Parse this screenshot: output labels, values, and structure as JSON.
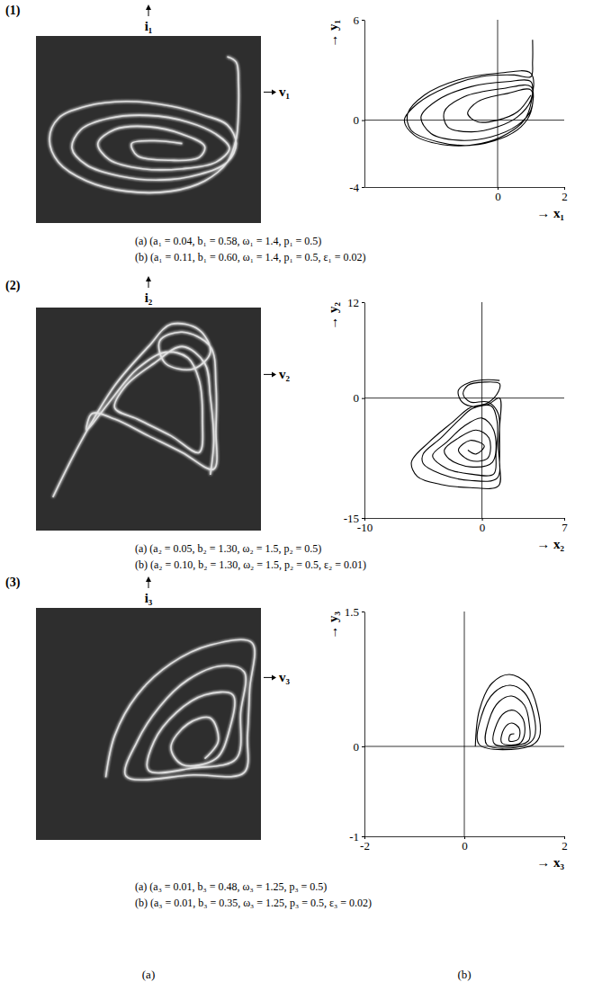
{
  "figure": {
    "rows": [
      {
        "label": "(1)",
        "captions": [
          "(a) (a₁ = 0.04, b₁ = 0.58, ω₁ = 1.4, p₁ = 0.5)",
          "(b) (a₁ = 0.11, b₁ = 0.60, ω₁ = 1.4, p₁ = 0.5, ε₁ = 0.02)"
        ]
      },
      {
        "label": "(2)",
        "captions": [
          "(a) (a₂ = 0.05, b₂ = 1.30, ω₂ = 1.5, p₂ = 0.5)",
          "(b) (a₂ = 0.10, b₂ = 1.30, ω₂ = 1.5, p₂ = 0.5, ε₂ = 0.01)"
        ]
      },
      {
        "label": "(3)",
        "captions": [
          "(a) (a₃ = 0.01, b₃ = 0.48, ω₃ = 1.25, p₃ = 0.5)",
          "(b) (a₃ = 0.01, b₃ = 0.35, ω₃ = 1.25, p₃ = 0.5, ε₃ = 0.02)"
        ]
      }
    ],
    "columns": [
      "(a)",
      "(b)"
    ]
  },
  "chart_data": [
    {
      "type": "line",
      "xlabel": "v₁",
      "ylabel": "i₁",
      "xlim": [
        -1,
        1
      ],
      "ylim": [
        -1,
        1
      ],
      "tick_labels": false,
      "color": "#e6e6e6",
      "x": [
        0.7,
        0.78,
        0.8,
        0.8,
        0.78,
        0.7,
        0.5,
        0.2,
        -0.2,
        -0.55,
        -0.8,
        -0.88,
        -0.8,
        -0.55,
        -0.2,
        0.2,
        0.5,
        0.7,
        0.78,
        0.7,
        0.45,
        0.1,
        -0.25,
        -0.55,
        -0.68,
        -0.6,
        -0.35,
        0,
        0.35,
        0.6,
        0.72,
        0.6,
        0.3,
        -0.05,
        -0.35,
        -0.45,
        -0.3,
        0,
        0.3,
        0.5,
        0.45,
        0.2,
        -0.1,
        -0.15,
        0.05,
        0.3
      ],
      "values": [
        0.78,
        0.72,
        0.5,
        0.2,
        -0.1,
        -0.35,
        -0.55,
        -0.66,
        -0.66,
        -0.55,
        -0.35,
        -0.1,
        0.12,
        0.25,
        0.3,
        0.25,
        0.15,
        0.05,
        -0.15,
        -0.35,
        -0.48,
        -0.54,
        -0.5,
        -0.38,
        -0.2,
        0,
        0.12,
        0.15,
        0.08,
        -0.05,
        -0.2,
        -0.35,
        -0.42,
        -0.42,
        -0.32,
        -0.15,
        0,
        0.03,
        -0.05,
        -0.18,
        -0.3,
        -0.33,
        -0.28,
        -0.15,
        -0.12,
        -0.15
      ]
    },
    {
      "type": "line",
      "xlabel": "→ x₁",
      "ylabel": "→ y₁",
      "xlim": [
        -4,
        2
      ],
      "xticks": [
        0,
        2
      ],
      "ylim": [
        -4,
        6
      ],
      "yticks": [
        -4,
        0,
        6
      ],
      "color": "#000000",
      "x": [
        1.05,
        1.05,
        1.0,
        0.5,
        -0.5,
        -1.5,
        -2.4,
        -2.8,
        -2.5,
        -1.5,
        -0.5,
        0.3,
        0.8,
        1.0,
        1.0,
        0.3,
        -0.8,
        -1.8,
        -2.3,
        -2.0,
        -1.2,
        -0.2,
        0.6,
        1.0,
        1.0,
        0.2,
        -1.0,
        -1.6,
        -1.5,
        -0.8,
        0,
        0.6,
        1.0,
        1.0,
        0,
        -1.2,
        -2.2,
        -2.7,
        -2.6,
        -1.8,
        -0.8,
        0.1,
        0.7,
        1.0,
        1.0,
        0.3,
        -0.6,
        -0.9,
        -0.6,
        0,
        0.6,
        1.0
      ],
      "values": [
        4.8,
        3.5,
        2.6,
        2.7,
        2.6,
        2.0,
        1.0,
        0,
        -0.9,
        -1.5,
        -1.4,
        -0.8,
        0,
        1.0,
        2.3,
        2.3,
        2.0,
        1.2,
        0.2,
        -0.8,
        -1.2,
        -1.0,
        -0.3,
        0.6,
        2.0,
        1.9,
        1.4,
        0.5,
        -0.4,
        -0.7,
        -0.4,
        0.2,
        1.2,
        2.8,
        2.8,
        2.4,
        1.5,
        0.4,
        -0.6,
        -1.3,
        -1.5,
        -1.1,
        -0.4,
        0.5,
        1.8,
        1.6,
        1.1,
        0.4,
        -0.1,
        0,
        0.5,
        1.5
      ]
    },
    {
      "type": "line",
      "xlabel": "v₂",
      "ylabel": "i₂",
      "xlim": [
        -1,
        1
      ],
      "ylim": [
        -1,
        1
      ],
      "tick_labels": false,
      "color": "#e6e6e6",
      "x": [
        -0.85,
        -0.6,
        -0.3,
        0,
        0.2,
        0.45,
        0.55,
        0.4,
        0.15,
        0.1,
        0.3,
        0.55,
        0.6,
        0.6,
        0.58,
        0.3,
        0,
        -0.3,
        -0.5,
        -0.55,
        -0.35,
        -0.1,
        0.15,
        0.35,
        0.45,
        0.48,
        0.45,
        0.2,
        -0.1,
        -0.3,
        -0.2,
        0.05,
        0.3,
        0.5,
        0.55,
        0.58,
        0.55
      ],
      "values": [
        -0.7,
        -0.2,
        0.3,
        0.65,
        0.85,
        0.8,
        0.6,
        0.45,
        0.5,
        0.7,
        0.78,
        0.65,
        0.3,
        -0.1,
        -0.45,
        -0.3,
        -0.15,
        0,
        0.05,
        -0.1,
        0.15,
        0.45,
        0.6,
        0.55,
        0.35,
        0,
        -0.3,
        -0.15,
        0,
        0.1,
        0.3,
        0.5,
        0.65,
        0.5,
        0.2,
        -0.2,
        -0.5
      ]
    },
    {
      "type": "line",
      "xlabel": "→ x₂",
      "ylabel": "→ y₂",
      "xlim": [
        -10,
        7
      ],
      "xticks": [
        -10,
        0,
        7
      ],
      "ylim": [
        -15,
        12
      ],
      "yticks": [
        -15,
        0,
        12
      ],
      "color": "#000000",
      "x": [
        1.5,
        0.5,
        -1,
        -2,
        -1.8,
        -1,
        0.5,
        1.5,
        1.5,
        1.5,
        1.4,
        -1,
        -3.5,
        -5.5,
        -6,
        -4.5,
        -2.5,
        -1,
        0.5,
        1.4,
        1.5,
        0.2,
        -1.2,
        -1.6,
        -1,
        0.5,
        1.4,
        1.4,
        1.3,
        -1,
        -3.5,
        -5,
        -5,
        -3.5,
        -2,
        -0.8,
        0.8,
        1.3,
        1.2,
        1,
        -1,
        -3,
        -4.2,
        -3,
        -1.5,
        0,
        1,
        0.9,
        -1,
        -2.8,
        -3.2,
        -2,
        -0.5,
        0.6,
        0.5,
        -1,
        -2,
        -1,
        0.2,
        -0.5,
        -1.2
      ],
      "values": [
        2.2,
        2.3,
        2,
        1,
        -0.3,
        -1,
        -0.8,
        0,
        -4,
        -8,
        -11,
        -11.2,
        -10.8,
        -9.8,
        -8,
        -5.5,
        -3,
        -1.2,
        -0.6,
        0.8,
        1.8,
        2,
        1.6,
        0.5,
        -0.5,
        -0.5,
        -2,
        -6,
        -10,
        -10.3,
        -9.5,
        -8.2,
        -7,
        -5,
        -2.8,
        -1.3,
        -1,
        -3,
        -7,
        -9.5,
        -9.5,
        -8.8,
        -7.2,
        -5.5,
        -3.5,
        -2.5,
        -4,
        -8,
        -8.6,
        -7.6,
        -6.5,
        -5,
        -4,
        -5,
        -7.5,
        -7.8,
        -6.5,
        -5.3,
        -6,
        -7,
        -6.5
      ]
    },
    {
      "type": "line",
      "xlabel": "v₃",
      "ylabel": "i₃",
      "xlim": [
        -1,
        1
      ],
      "ylim": [
        -1,
        1
      ],
      "tick_labels": false,
      "color": "#e6e6e6",
      "x": [
        -0.38,
        -0.3,
        -0.1,
        0.2,
        0.55,
        0.92,
        0.9,
        0.88,
        0.85,
        0.4,
        -0.2,
        -0.1,
        0.1,
        0.35,
        0.65,
        0.85,
        0.82,
        0.78,
        0.4,
        0,
        0.05,
        0.25,
        0.5,
        0.75,
        0.72,
        0.6,
        0.3,
        0.2,
        0.35,
        0.55,
        0.62,
        0.5
      ],
      "values": [
        -0.46,
        -0.1,
        0.25,
        0.52,
        0.68,
        0.7,
        0.3,
        -0.1,
        -0.42,
        -0.44,
        -0.45,
        -0.15,
        0.15,
        0.38,
        0.5,
        0.45,
        0.1,
        -0.3,
        -0.38,
        -0.4,
        -0.15,
        0.1,
        0.25,
        0.25,
        -0.05,
        -0.3,
        -0.35,
        -0.2,
        0,
        0.05,
        -0.15,
        -0.3
      ]
    },
    {
      "type": "line",
      "xlabel": "→ x₃",
      "ylabel": "→ y₃",
      "xlim": [
        -2,
        2
      ],
      "xticks": [
        -2,
        0,
        2
      ],
      "ylim": [
        -1,
        1.5
      ],
      "yticks": [
        -1,
        0,
        1.5
      ],
      "color": "#000000",
      "x": [
        0.22,
        0.3,
        0.55,
        0.9,
        1.25,
        1.45,
        1.5,
        1.3,
        0.3,
        0.35,
        0.6,
        0.92,
        1.2,
        1.38,
        1.4,
        1.2,
        0.45,
        0.5,
        0.7,
        0.95,
        1.2,
        1.3,
        1.28,
        0.6,
        0.65,
        0.82,
        1.0,
        1.18,
        1.2,
        1.1,
        0.75,
        0.8,
        0.95,
        1.1,
        1.08,
        0.9,
        0.92,
        1.0
      ],
      "values": [
        0,
        0.4,
        0.7,
        0.8,
        0.7,
        0.45,
        0.1,
        0,
        0.02,
        0.35,
        0.6,
        0.68,
        0.6,
        0.38,
        0.1,
        0.01,
        0.02,
        0.3,
        0.5,
        0.56,
        0.46,
        0.25,
        0.06,
        0.03,
        0.25,
        0.38,
        0.4,
        0.3,
        0.12,
        0.03,
        0.04,
        0.2,
        0.26,
        0.2,
        0.08,
        0.06,
        0.13,
        0.14
      ]
    }
  ]
}
